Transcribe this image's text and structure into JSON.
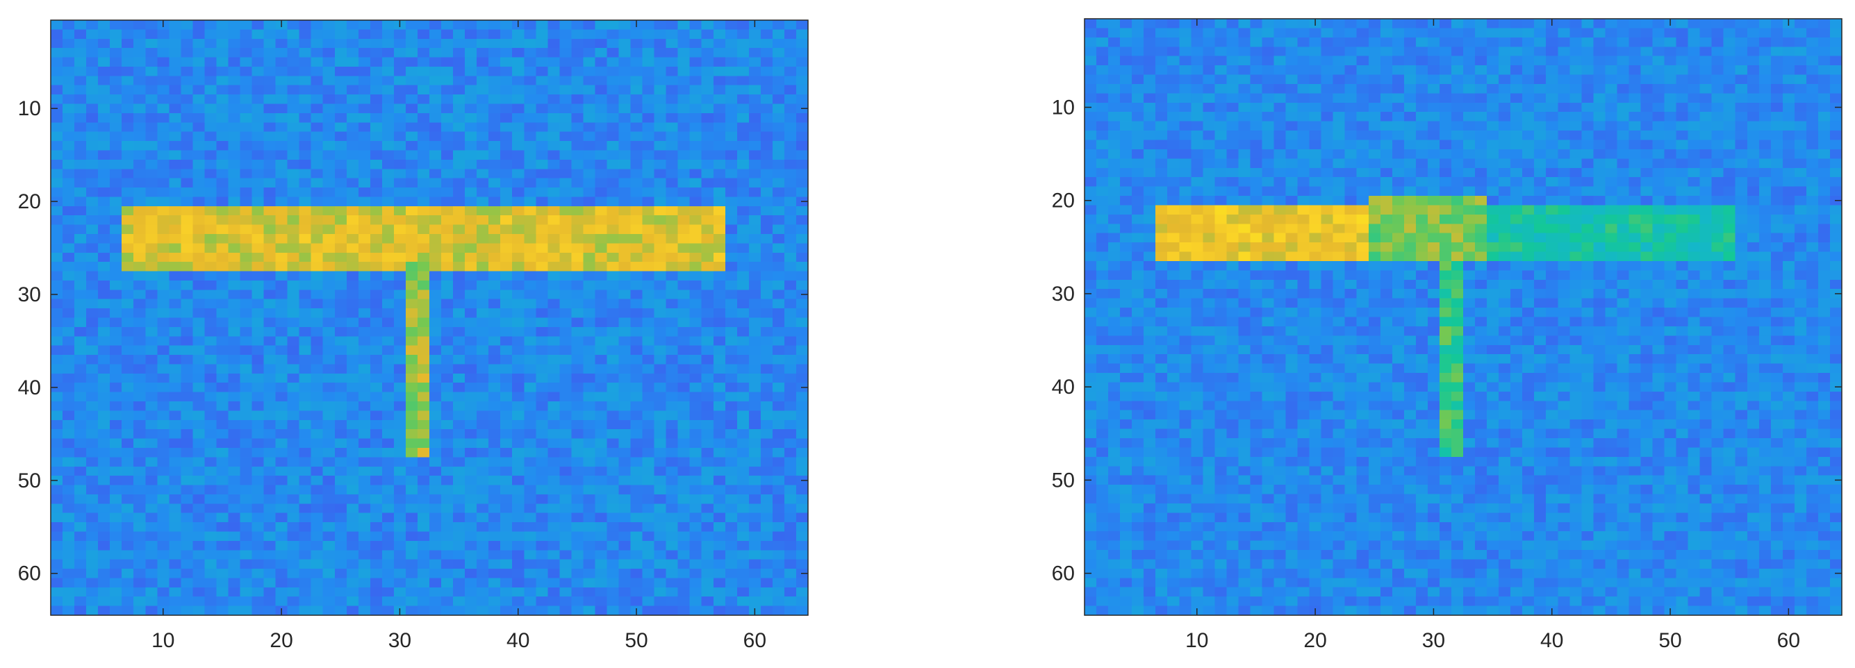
{
  "chart_data": [
    {
      "type": "heatmap",
      "title": "",
      "xlabel": "",
      "ylabel": "",
      "xlim": [
        0.5,
        64.5
      ],
      "ylim": [
        0.5,
        64.5
      ],
      "y_reversed": true,
      "grid": false,
      "colormap": "parula",
      "x_ticks": [
        10,
        20,
        30,
        40,
        50,
        60
      ],
      "y_ticks": [
        10,
        20,
        30,
        40,
        50,
        60
      ],
      "x_tick_labels": [
        "10",
        "20",
        "30",
        "40",
        "50",
        "60"
      ],
      "y_tick_labels": [
        "10",
        "20",
        "30",
        "40",
        "50",
        "60"
      ],
      "background_level": 0.3,
      "noise_amplitude": 0.09,
      "regions": [
        {
          "name": "bar",
          "x_range": [
            7,
            57
          ],
          "y_range": [
            21,
            27
          ],
          "level": 0.82
        },
        {
          "name": "stem",
          "x_range": [
            31,
            32
          ],
          "y_range": [
            27,
            47
          ],
          "level": 0.74
        }
      ]
    },
    {
      "type": "heatmap",
      "title": "",
      "xlabel": "",
      "ylabel": "",
      "xlim": [
        0.5,
        64.5
      ],
      "ylim": [
        0.5,
        64.5
      ],
      "y_reversed": true,
      "grid": false,
      "colormap": "parula",
      "x_ticks": [
        10,
        20,
        30,
        40,
        50,
        60
      ],
      "y_ticks": [
        10,
        20,
        30,
        40,
        50,
        60
      ],
      "x_tick_labels": [
        "10",
        "20",
        "30",
        "40",
        "50",
        "60"
      ],
      "y_tick_labels": [
        "10",
        "20",
        "30",
        "40",
        "50",
        "60"
      ],
      "background_level": 0.3,
      "noise_amplitude": 0.08,
      "regions": [
        {
          "name": "bar-bright",
          "x_range": [
            7,
            24
          ],
          "y_range": [
            21,
            26
          ],
          "level": 0.86
        },
        {
          "name": "bar-mid",
          "x_range": [
            25,
            34
          ],
          "y_range": [
            20,
            26
          ],
          "level": 0.7
        },
        {
          "name": "bar-dim",
          "x_range": [
            35,
            55
          ],
          "y_range": [
            21,
            26
          ],
          "level": 0.55
        },
        {
          "name": "stem",
          "x_range": [
            31,
            32
          ],
          "y_range": [
            27,
            47
          ],
          "level": 0.62
        }
      ]
    }
  ]
}
